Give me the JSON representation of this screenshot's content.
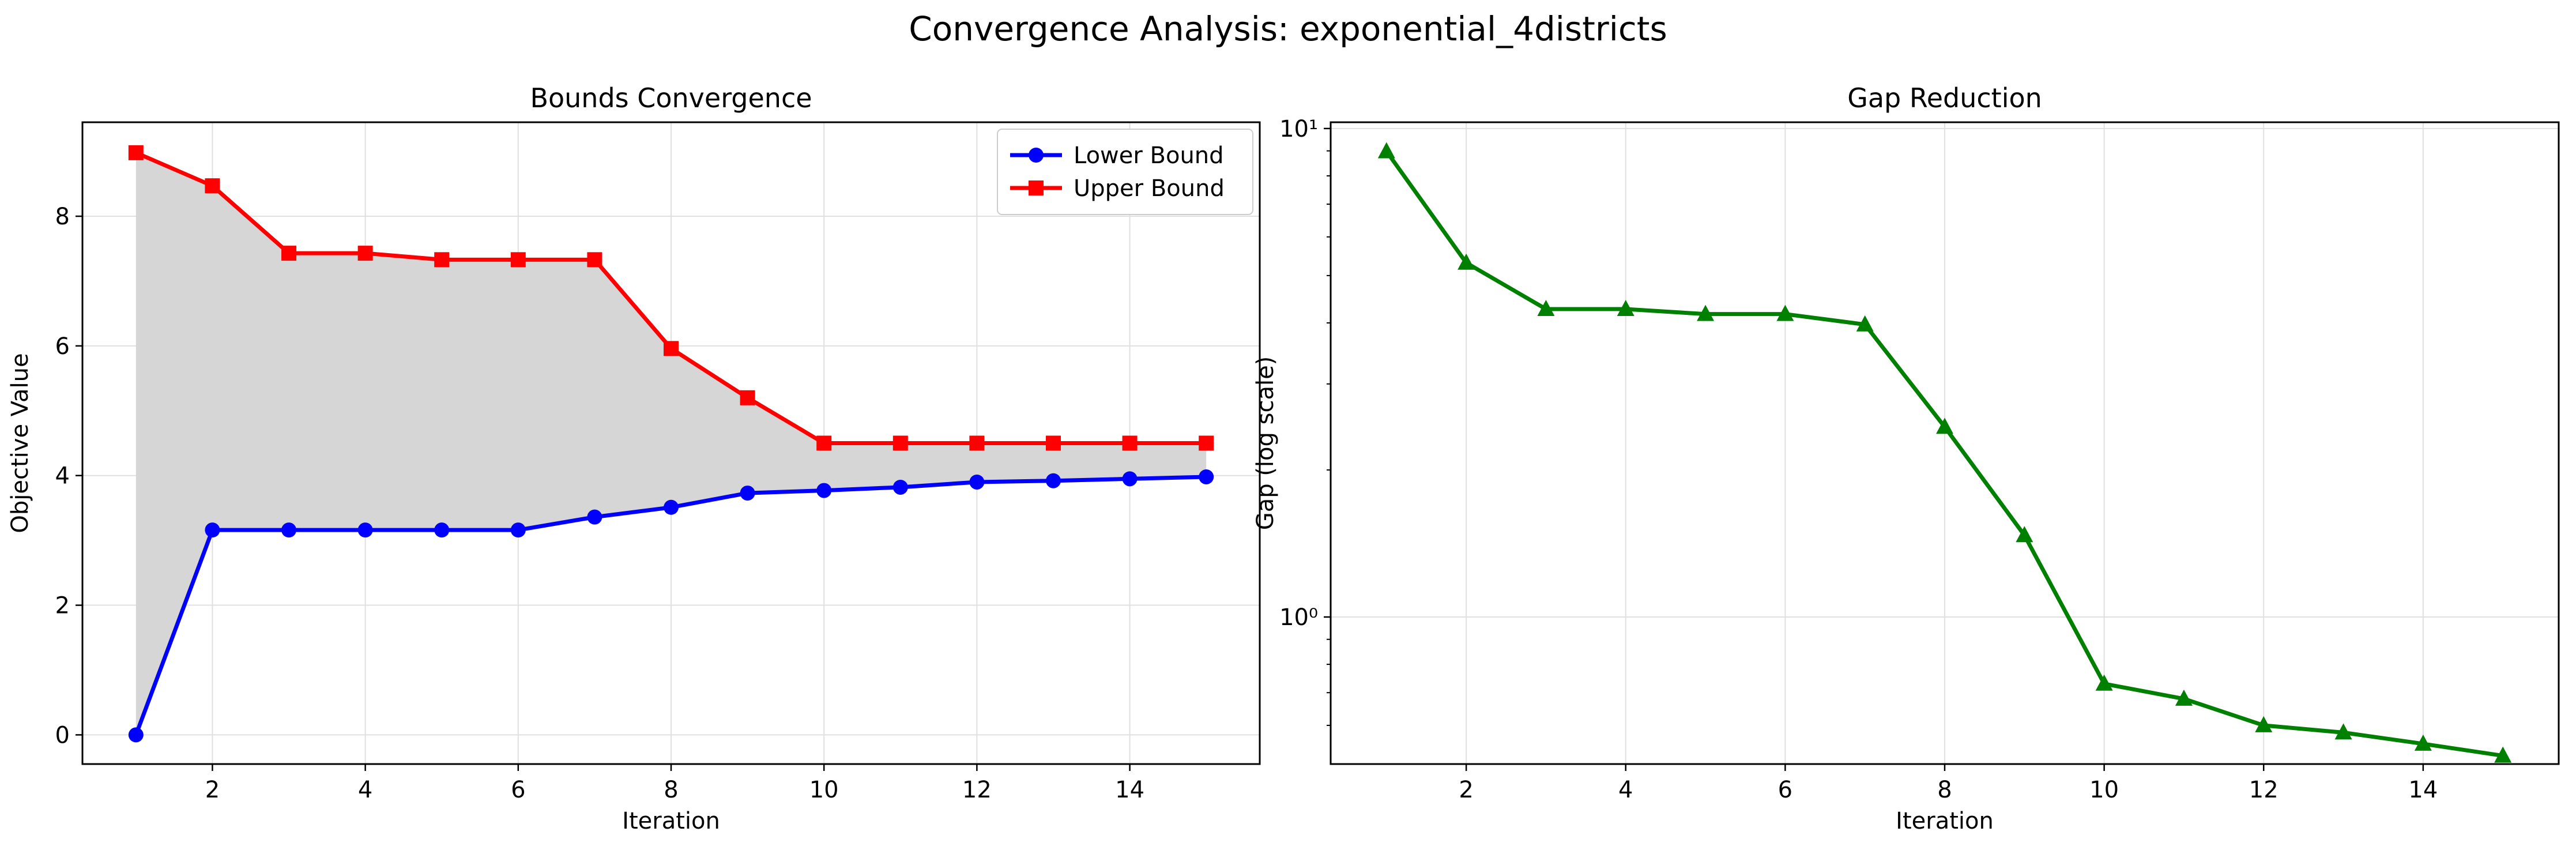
{
  "figure_title": "Convergence Analysis: exponential_4districts",
  "chart_data": [
    {
      "type": "line",
      "title": "Bounds Convergence",
      "xlabel": "Iteration",
      "ylabel": "Objective Value",
      "x": [
        1,
        2,
        3,
        4,
        5,
        6,
        7,
        8,
        9,
        10,
        11,
        12,
        13,
        14,
        15
      ],
      "xlim": [
        0.3,
        15.7
      ],
      "ylim": [
        -0.45,
        9.45
      ],
      "xticks": [
        2,
        4,
        6,
        8,
        10,
        12,
        14
      ],
      "yticks": [
        0,
        2,
        4,
        6,
        8
      ],
      "grid": true,
      "legend_position": "top-right",
      "fill_between_series": true,
      "fill_color": "#d6d6d6",
      "series": [
        {
          "name": "Lower Bound",
          "color": "#0000ff",
          "marker": "circle",
          "values": [
            0.0,
            3.16,
            3.16,
            3.16,
            3.16,
            3.16,
            3.36,
            3.51,
            3.73,
            3.77,
            3.82,
            3.9,
            3.92,
            3.95,
            3.98
          ]
        },
        {
          "name": "Upper Bound",
          "color": "#ff0000",
          "marker": "square",
          "values": [
            8.98,
            8.47,
            7.43,
            7.43,
            7.33,
            7.33,
            7.33,
            5.96,
            5.2,
            4.5,
            4.5,
            4.5,
            4.5,
            4.5,
            4.5
          ]
        }
      ]
    },
    {
      "type": "line",
      "title": "Gap Reduction",
      "xlabel": "Iteration",
      "ylabel": "Gap (log scale)",
      "yscale": "log",
      "x": [
        1,
        2,
        3,
        4,
        5,
        6,
        7,
        8,
        9,
        10,
        11,
        12,
        13,
        14,
        15
      ],
      "xlim": [
        0.3,
        15.7
      ],
      "ylim": [
        0.5,
        10.3
      ],
      "xticks": [
        2,
        4,
        6,
        8,
        10,
        12,
        14
      ],
      "yticks": [
        1,
        10
      ],
      "ytick_labels": [
        "10⁰",
        "10¹"
      ],
      "grid": true,
      "series": [
        {
          "name": "",
          "color": "#008000",
          "marker": "triangle",
          "values": [
            8.98,
            5.31,
            4.27,
            4.27,
            4.17,
            4.17,
            3.97,
            2.45,
            1.47,
            0.73,
            0.68,
            0.6,
            0.58,
            0.55,
            0.52
          ]
        }
      ]
    }
  ]
}
